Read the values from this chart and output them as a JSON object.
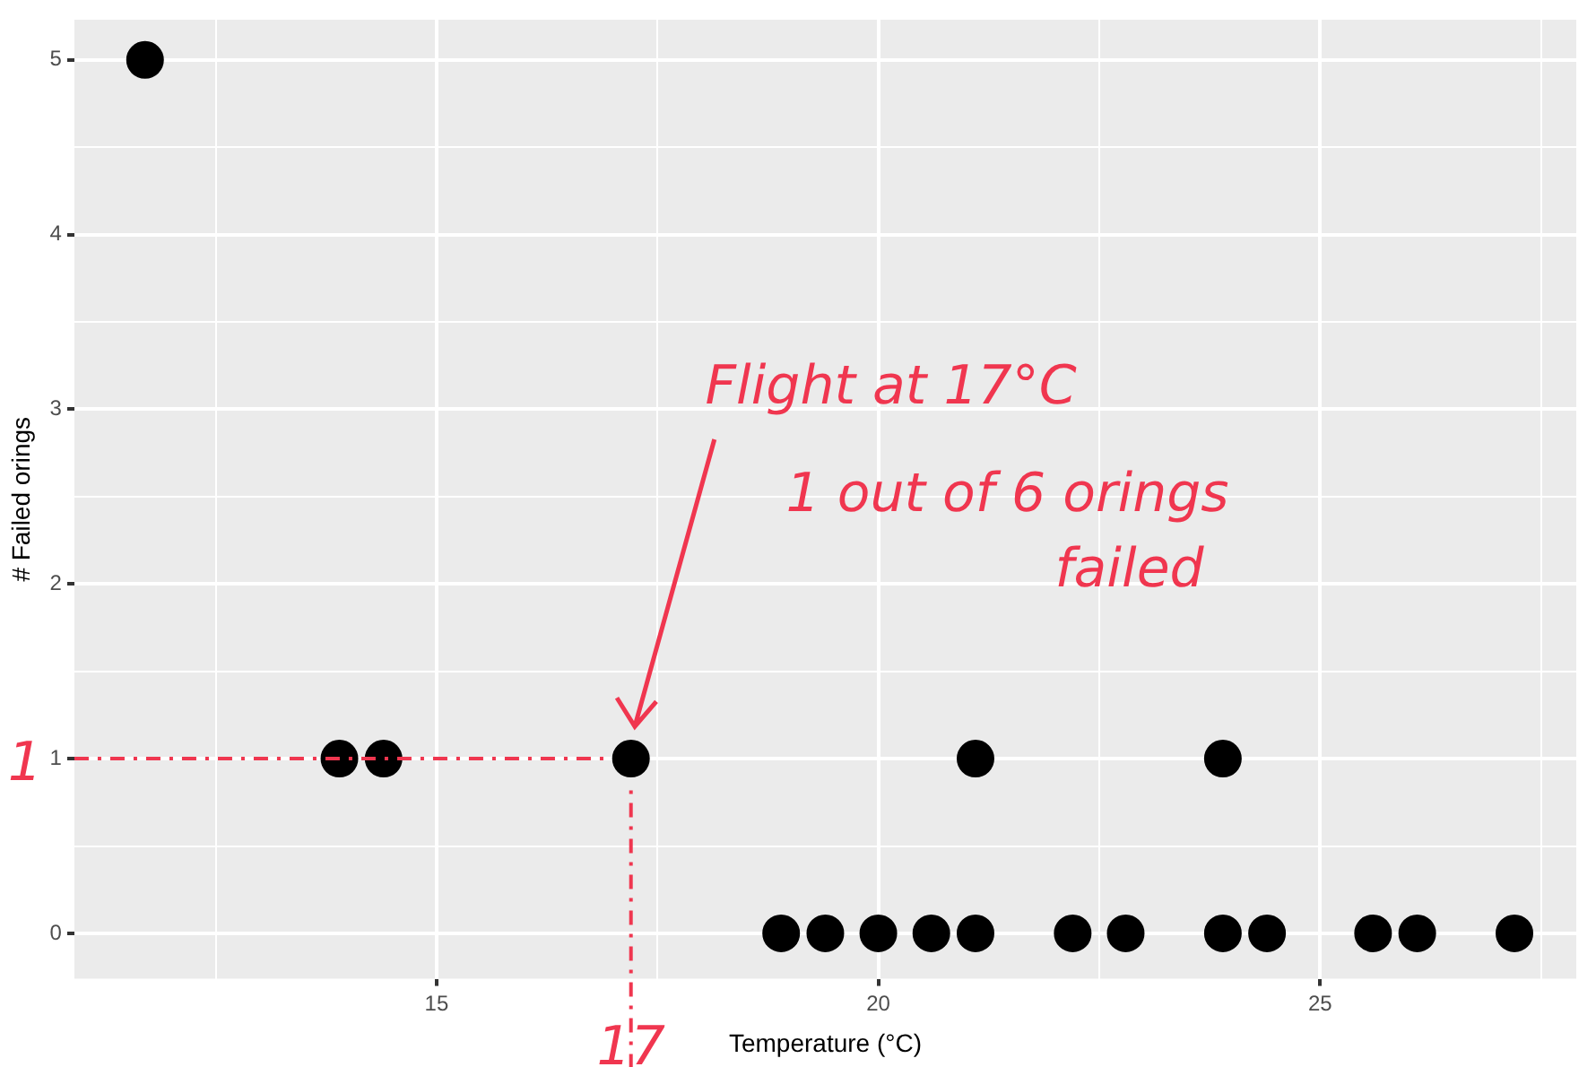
{
  "chart_data": {
    "type": "scatter",
    "xlabel": "Temperature (°C)",
    "ylabel": "# Failed orings",
    "x": [
      11.7,
      13.9,
      14.4,
      17.2,
      21.1,
      23.9,
      18.9,
      19.4,
      20,
      20.6,
      21.1,
      22.2,
      22.8,
      23.9,
      24.4,
      25.6,
      26.1,
      27.2
    ],
    "series": [
      {
        "color": "#000000",
        "values": [
          5,
          1,
          1,
          1,
          1,
          1,
          0,
          0,
          0,
          0,
          0,
          0,
          0,
          0,
          0,
          0,
          0,
          0
        ]
      }
    ],
    "xlim": [
      10.9,
      27.9
    ],
    "ylim": [
      -0.26,
      5.23
    ],
    "xticks": [
      {
        "value": 12.5,
        "label": null
      },
      15,
      {
        "value": 17.5,
        "label": null
      },
      20,
      {
        "value": 22.5,
        "label": null
      },
      25,
      {
        "value": 27.5,
        "label": null
      }
    ],
    "yticks": [
      0,
      {
        "value": 0.5,
        "label": null
      },
      1,
      {
        "value": 1.5,
        "label": null
      },
      2,
      {
        "value": 2.5,
        "label": null
      },
      3,
      {
        "value": 3.5,
        "label": null
      },
      4,
      {
        "value": 4.5,
        "label": null
      },
      5
    ],
    "grid": true,
    "legend": false,
    "marker": "circle",
    "ref_lines": [
      {
        "axis": "y",
        "value": 1,
        "label": "1",
        "color": "#f0364f",
        "line_style": "dashed"
      },
      {
        "axis": "x",
        "value": 17.2,
        "label": "17",
        "color": "#f0364f",
        "line_style": "dashed"
      }
    ],
    "annotations": [
      "Flight at 17°C",
      "1 out of 6 orings failed"
    ]
  }
}
